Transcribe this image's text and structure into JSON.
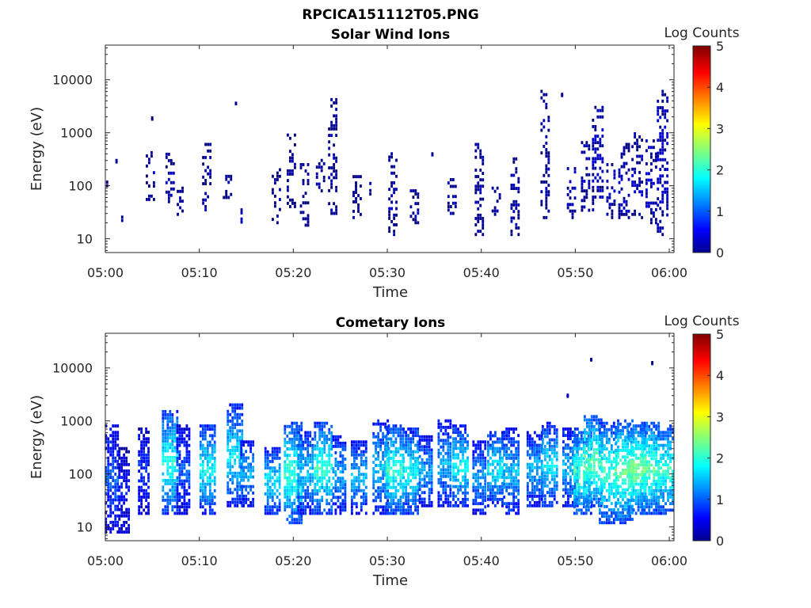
{
  "figure_title": "RPCICA151112T05.PNG",
  "chart_data": [
    {
      "type": "heatmap",
      "title": "Solar Wind Ions",
      "xlabel": "Time",
      "ylabel": "Energy (eV)",
      "x_ticks": [
        "05:00",
        "05:10",
        "05:20",
        "05:30",
        "05:40",
        "05:50",
        "06:00"
      ],
      "x_range_minutes": [
        0,
        60.5
      ],
      "y_ticks": [
        "10",
        "100",
        "1000",
        "10000"
      ],
      "y_range": [
        5.5,
        45000
      ],
      "y_scale": "log",
      "colorbar": {
        "label": "Log Counts",
        "ticks": [
          "0",
          "1",
          "2",
          "3",
          "4",
          "5"
        ],
        "range": [
          0,
          5
        ],
        "colormap": "jet"
      },
      "activity_profile_note": "sparse low-count detections (log counts ~0), most active 05:47-06:00",
      "bursts": [
        {
          "t": 0.2,
          "e_lo": 100,
          "e_hi": 160,
          "lvl": 0.1
        },
        {
          "t": 1.2,
          "e_lo": 280,
          "e_hi": 300,
          "lvl": 0.1
        },
        {
          "t": 1.8,
          "e_lo": 22,
          "e_hi": 40,
          "lvl": 0.1
        },
        {
          "t": 4.8,
          "e_lo": 55,
          "e_hi": 420,
          "lvl": 0.1
        },
        {
          "t": 5.0,
          "e_lo": 1800,
          "e_hi": 1900,
          "lvl": 0.1
        },
        {
          "t": 6.9,
          "e_lo": 50,
          "e_hi": 450,
          "lvl": 0.15
        },
        {
          "t": 8.1,
          "e_lo": 25,
          "e_hi": 90,
          "lvl": 0.1
        },
        {
          "t": 10.8,
          "e_lo": 35,
          "e_hi": 600,
          "lvl": 0.15
        },
        {
          "t": 13.0,
          "e_lo": 60,
          "e_hi": 150,
          "lvl": 0.1
        },
        {
          "t": 13.9,
          "e_lo": 3500,
          "e_hi": 3600,
          "lvl": 0.1
        },
        {
          "t": 14.5,
          "e_lo": 18,
          "e_hi": 35,
          "lvl": 0.1
        },
        {
          "t": 18.2,
          "e_lo": 20,
          "e_hi": 200,
          "lvl": 0.1
        },
        {
          "t": 19.8,
          "e_lo": 35,
          "e_hi": 900,
          "lvl": 0.1
        },
        {
          "t": 21.2,
          "e_lo": 18,
          "e_hi": 250,
          "lvl": 0.1
        },
        {
          "t": 22.9,
          "e_lo": 80,
          "e_hi": 300,
          "lvl": 0.1
        },
        {
          "t": 24.2,
          "e_lo": 30,
          "e_hi": 4200,
          "lvl": 0.1
        },
        {
          "t": 26.8,
          "e_lo": 25,
          "e_hi": 170,
          "lvl": 0.1
        },
        {
          "t": 28.2,
          "e_lo": 60,
          "e_hi": 110,
          "lvl": 0.1
        },
        {
          "t": 30.6,
          "e_lo": 12,
          "e_hi": 400,
          "lvl": 0.15
        },
        {
          "t": 32.9,
          "e_lo": 20,
          "e_hi": 80,
          "lvl": 0.1
        },
        {
          "t": 34.8,
          "e_lo": 380,
          "e_hi": 400,
          "lvl": 0.1
        },
        {
          "t": 36.9,
          "e_lo": 30,
          "e_hi": 130,
          "lvl": 0.1
        },
        {
          "t": 39.8,
          "e_lo": 12,
          "e_hi": 600,
          "lvl": 0.1
        },
        {
          "t": 41.6,
          "e_lo": 25,
          "e_hi": 90,
          "lvl": 0.1
        },
        {
          "t": 43.6,
          "e_lo": 12,
          "e_hi": 320,
          "lvl": 0.1
        },
        {
          "t": 46.8,
          "e_lo": 25,
          "e_hi": 6000,
          "lvl": 0.1
        },
        {
          "t": 48.6,
          "e_lo": 5000,
          "e_hi": 5300,
          "lvl": 0.1
        },
        {
          "t": 49.6,
          "e_lo": 25,
          "e_hi": 210,
          "lvl": 0.2
        },
        {
          "t": 51.1,
          "e_lo": 30,
          "e_hi": 650,
          "lvl": 0.2
        },
        {
          "t": 52.4,
          "e_lo": 35,
          "e_hi": 3000,
          "lvl": 0.25
        },
        {
          "t": 53.8,
          "e_lo": 25,
          "e_hi": 250,
          "lvl": 0.2
        },
        {
          "t": 55.2,
          "e_lo": 25,
          "e_hi": 600,
          "lvl": 0.25
        },
        {
          "t": 56.6,
          "e_lo": 25,
          "e_hi": 1100,
          "lvl": 0.25
        },
        {
          "t": 58.1,
          "e_lo": 20,
          "e_hi": 700,
          "lvl": 0.3
        },
        {
          "t": 59.3,
          "e_lo": 12,
          "e_hi": 6000,
          "lvl": 0.3
        }
      ]
    },
    {
      "type": "heatmap",
      "title": "Cometary Ions",
      "xlabel": "Time",
      "ylabel": "Energy (eV)",
      "x_ticks": [
        "05:00",
        "05:10",
        "05:20",
        "05:30",
        "05:40",
        "05:50",
        "06:00"
      ],
      "x_range_minutes": [
        0,
        60.5
      ],
      "y_ticks": [
        "10",
        "100",
        "1000",
        "10000"
      ],
      "y_range": [
        5.5,
        45000
      ],
      "y_scale": "log",
      "colorbar": {
        "label": "Log Counts",
        "ticks": [
          "0",
          "1",
          "2",
          "3",
          "4",
          "5"
        ],
        "range": [
          0,
          5
        ],
        "colormap": "jet"
      },
      "activity_profile_note": "quasi-periodic bursts roughly every 1.5-2 min, log counts up to ~2",
      "bursts": [
        {
          "t": 0.7,
          "e_lo": 8,
          "e_hi": 800,
          "lvl": 0.9
        },
        {
          "t": 2.0,
          "e_lo": 8,
          "e_hi": 300,
          "lvl": 0.6
        },
        {
          "t": 4.1,
          "e_lo": 18,
          "e_hi": 700,
          "lvl": 0.7
        },
        {
          "t": 6.9,
          "e_lo": 18,
          "e_hi": 1500,
          "lvl": 1.7
        },
        {
          "t": 8.3,
          "e_lo": 18,
          "e_hi": 800,
          "lvl": 0.9
        },
        {
          "t": 10.9,
          "e_lo": 18,
          "e_hi": 800,
          "lvl": 1.6
        },
        {
          "t": 13.8,
          "e_lo": 25,
          "e_hi": 2000,
          "lvl": 1.5
        },
        {
          "t": 15.1,
          "e_lo": 25,
          "e_hi": 400,
          "lvl": 1.2
        },
        {
          "t": 17.8,
          "e_lo": 18,
          "e_hi": 300,
          "lvl": 1.5
        },
        {
          "t": 20.0,
          "e_lo": 12,
          "e_hi": 900,
          "lvl": 1.8
        },
        {
          "t": 21.3,
          "e_lo": 18,
          "e_hi": 600,
          "lvl": 1.4
        },
        {
          "t": 23.2,
          "e_lo": 18,
          "e_hi": 900,
          "lvl": 1.8
        },
        {
          "t": 24.9,
          "e_lo": 18,
          "e_hi": 500,
          "lvl": 1.2
        },
        {
          "t": 27.0,
          "e_lo": 18,
          "e_hi": 400,
          "lvl": 1.3
        },
        {
          "t": 29.3,
          "e_lo": 18,
          "e_hi": 1000,
          "lvl": 1.3
        },
        {
          "t": 30.8,
          "e_lo": 18,
          "e_hi": 800,
          "lvl": 1.8
        },
        {
          "t": 32.5,
          "e_lo": 18,
          "e_hi": 700,
          "lvl": 1.6
        },
        {
          "t": 34.1,
          "e_lo": 25,
          "e_hi": 500,
          "lvl": 1.2
        },
        {
          "t": 36.1,
          "e_lo": 25,
          "e_hi": 1000,
          "lvl": 1.2
        },
        {
          "t": 37.8,
          "e_lo": 25,
          "e_hi": 800,
          "lvl": 1.6
        },
        {
          "t": 39.8,
          "e_lo": 18,
          "e_hi": 400,
          "lvl": 1.2
        },
        {
          "t": 41.5,
          "e_lo": 25,
          "e_hi": 600,
          "lvl": 1.5
        },
        {
          "t": 43.2,
          "e_lo": 18,
          "e_hi": 700,
          "lvl": 1.3
        },
        {
          "t": 45.7,
          "e_lo": 25,
          "e_hi": 600,
          "lvl": 1.3
        },
        {
          "t": 47.3,
          "e_lo": 25,
          "e_hi": 900,
          "lvl": 1.5
        },
        {
          "t": 49.5,
          "e_lo": 25,
          "e_hi": 700,
          "lvl": 1.3
        },
        {
          "t": 50.8,
          "e_lo": 18,
          "e_hi": 600,
          "lvl": 1.9
        },
        {
          "t": 51.9,
          "e_lo": 25,
          "e_hi": 1200,
          "lvl": 2.0
        },
        {
          "t": 53.5,
          "e_lo": 12,
          "e_hi": 900,
          "lvl": 1.8
        },
        {
          "t": 55.2,
          "e_lo": 12,
          "e_hi": 1000,
          "lvl": 2.0
        },
        {
          "t": 56.6,
          "e_lo": 18,
          "e_hi": 800,
          "lvl": 2.1
        },
        {
          "t": 58.0,
          "e_lo": 18,
          "e_hi": 900,
          "lvl": 2.0
        },
        {
          "t": 59.5,
          "e_lo": 18,
          "e_hi": 800,
          "lvl": 1.8
        },
        {
          "t": 51.7,
          "e_lo": 14000,
          "e_hi": 14500,
          "lvl": 0.1
        },
        {
          "t": 58.2,
          "e_lo": 12000,
          "e_hi": 12600,
          "lvl": 0.1
        },
        {
          "t": 49.2,
          "e_lo": 2900,
          "e_hi": 3050,
          "lvl": 0.1
        }
      ]
    }
  ]
}
